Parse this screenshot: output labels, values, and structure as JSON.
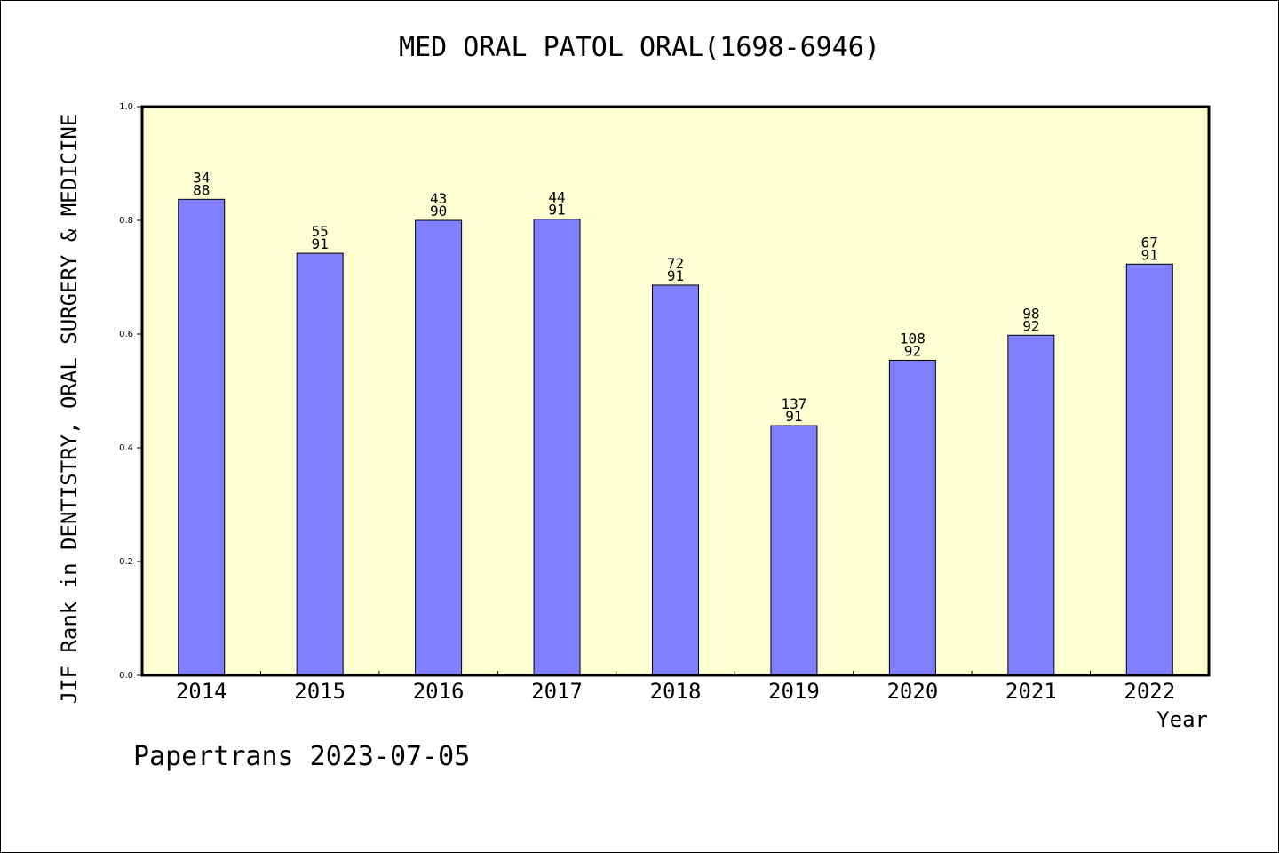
{
  "chart_data": {
    "type": "bar",
    "title": "MED ORAL PATOL ORAL(1698-6946)",
    "xlabel": "Year",
    "ylabel": "JIF Rank in DENTISTRY, ORAL SURGERY & MEDICINE",
    "ylim": [
      0,
      1.0
    ],
    "yticks": [
      "0.0",
      "0.2",
      "0.4",
      "0.6",
      "0.8",
      "1.0"
    ],
    "categories": [
      "2014",
      "2015",
      "2016",
      "2017",
      "2018",
      "2019",
      "2020",
      "2021",
      "2022"
    ],
    "values": [
      0.837,
      0.742,
      0.8,
      0.802,
      0.686,
      0.439,
      0.554,
      0.598,
      0.723
    ],
    "labels": [
      [
        "34",
        "88"
      ],
      [
        "55",
        "91"
      ],
      [
        "43",
        "90"
      ],
      [
        "44",
        "91"
      ],
      [
        "72",
        "91"
      ],
      [
        "137",
        "91"
      ],
      [
        "108",
        "92"
      ],
      [
        "98",
        "92"
      ],
      [
        "67",
        "91"
      ]
    ],
    "grid": false,
    "colors": {
      "bar": "#8080ff",
      "plot_background": "#ffffd4",
      "axis": "#000000"
    }
  },
  "footer": "Papertrans 2023-07-05"
}
